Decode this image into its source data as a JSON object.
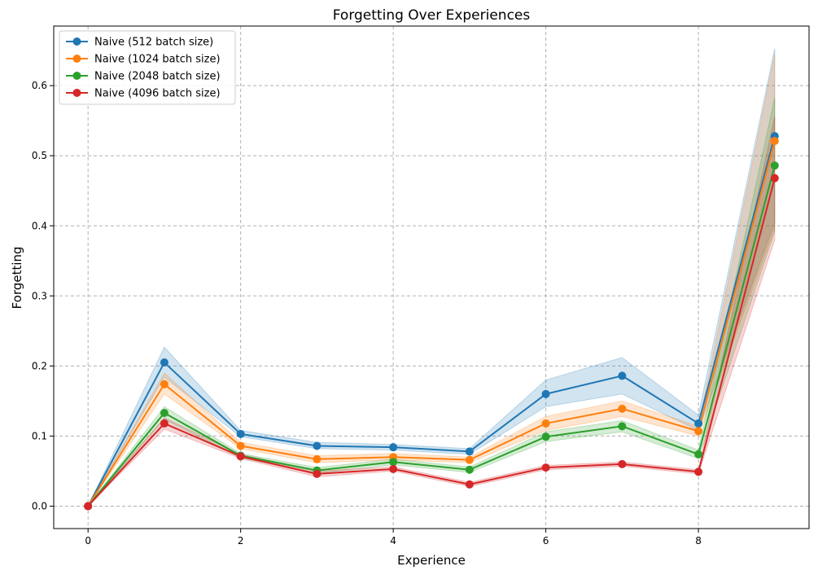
{
  "chart_data": {
    "type": "line",
    "title": "Forgetting Over Experiences",
    "xlabel": "Experience",
    "ylabel": "Forgetting",
    "xlim": [
      -0.45,
      9.45
    ],
    "ylim": [
      -0.032,
      0.685
    ],
    "xticks": [
      0,
      2,
      4,
      6,
      8
    ],
    "xtick_labels": [
      "0",
      "2",
      "4",
      "6",
      "8"
    ],
    "yticks": [
      0.0,
      0.1,
      0.2,
      0.3,
      0.4,
      0.5,
      0.6
    ],
    "ytick_labels": [
      "0.0",
      "0.1",
      "0.2",
      "0.3",
      "0.4",
      "0.5",
      "0.6"
    ],
    "grid": true,
    "legend_position": "top-left",
    "x": [
      0,
      1,
      2,
      3,
      4,
      5,
      6,
      7,
      8,
      9
    ],
    "series": [
      {
        "name": "Naive (512 batch size)",
        "color": "#1f77b4",
        "values": [
          0.0,
          0.205,
          0.103,
          0.086,
          0.084,
          0.078,
          0.16,
          0.186,
          0.118,
          0.528
        ],
        "lower": [
          0.0,
          0.184,
          0.099,
          0.082,
          0.08,
          0.074,
          0.142,
          0.16,
          0.108,
          0.404
        ],
        "upper": [
          0.0,
          0.227,
          0.108,
          0.091,
          0.088,
          0.082,
          0.18,
          0.212,
          0.13,
          0.653
        ]
      },
      {
        "name": "Naive (1024 batch size)",
        "color": "#ff7f0e",
        "values": [
          0.0,
          0.174,
          0.086,
          0.067,
          0.07,
          0.066,
          0.118,
          0.139,
          0.107,
          0.521
        ],
        "lower": [
          0.0,
          0.16,
          0.082,
          0.062,
          0.066,
          0.062,
          0.108,
          0.128,
          0.1,
          0.396
        ],
        "upper": [
          0.0,
          0.19,
          0.091,
          0.072,
          0.075,
          0.07,
          0.128,
          0.15,
          0.114,
          0.645
        ]
      },
      {
        "name": "Naive (2048 batch size)",
        "color": "#2ca02c",
        "values": [
          0.0,
          0.133,
          0.072,
          0.051,
          0.063,
          0.052,
          0.099,
          0.114,
          0.074,
          0.486
        ],
        "lower": [
          0.0,
          0.124,
          0.069,
          0.047,
          0.059,
          0.048,
          0.092,
          0.106,
          0.068,
          0.392
        ],
        "upper": [
          0.0,
          0.142,
          0.075,
          0.055,
          0.067,
          0.056,
          0.106,
          0.122,
          0.08,
          0.583
        ]
      },
      {
        "name": "Naive (4096 batch size)",
        "color": "#d62728",
        "values": [
          0.0,
          0.118,
          0.071,
          0.046,
          0.053,
          0.031,
          0.055,
          0.06,
          0.049,
          0.468
        ],
        "lower": [
          0.0,
          0.11,
          0.068,
          0.042,
          0.05,
          0.028,
          0.052,
          0.057,
          0.046,
          0.38
        ],
        "upper": [
          0.0,
          0.126,
          0.074,
          0.05,
          0.056,
          0.034,
          0.058,
          0.063,
          0.052,
          0.556
        ]
      }
    ]
  }
}
